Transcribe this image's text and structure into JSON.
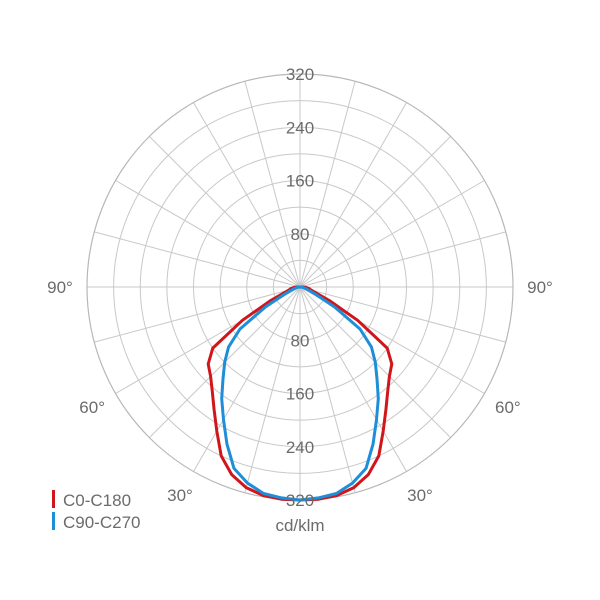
{
  "chart_data": {
    "type": "polar",
    "unit": "cd/klm",
    "radial_ticks": [
      "80",
      "160",
      "240",
      "320"
    ],
    "radial_tick_values": [
      80,
      160,
      240,
      320
    ],
    "radial_max": 320,
    "angle_labels": [
      "90°",
      "60°",
      "30°",
      "90°",
      "60°",
      "30°"
    ],
    "angle_label_values": [
      90,
      60,
      30,
      -90,
      -60,
      -30
    ],
    "spoke_step_deg": 15,
    "legend_position": "bottom-left",
    "series": [
      {
        "name": "C0-C180",
        "color": "#d0161b",
        "angles": [
          -90,
          -85,
          -80,
          -75,
          -70,
          -65,
          -60,
          -55,
          -50,
          -45,
          -40,
          -35,
          -30,
          -25,
          -20,
          -15,
          -10,
          -5,
          0,
          5,
          10,
          15,
          20,
          25,
          30,
          35,
          40,
          45,
          50,
          55,
          60,
          65,
          70,
          75,
          80,
          85,
          90
        ],
        "values": [
          5,
          10,
          14,
          17,
          25,
          50,
          100,
          160,
          180,
          190,
          205,
          225,
          250,
          280,
          300,
          312,
          318,
          320,
          320,
          320,
          318,
          312,
          300,
          280,
          250,
          225,
          205,
          190,
          180,
          160,
          100,
          50,
          25,
          17,
          14,
          10,
          5
        ]
      },
      {
        "name": "C90-C270",
        "color": "#1e8ed8",
        "angles": [
          -90,
          -85,
          -80,
          -75,
          -70,
          -65,
          -60,
          -55,
          -50,
          -45,
          -40,
          -35,
          -30,
          -25,
          -20,
          -15,
          -10,
          -5,
          0,
          5,
          10,
          15,
          20,
          25,
          30,
          35,
          40,
          45,
          50,
          55,
          60,
          65,
          70,
          75,
          80,
          85,
          90
        ],
        "values": [
          0,
          3,
          5,
          8,
          14,
          25,
          60,
          110,
          140,
          160,
          180,
          205,
          230,
          260,
          290,
          305,
          315,
          318,
          320,
          318,
          315,
          305,
          290,
          260,
          230,
          205,
          180,
          160,
          140,
          110,
          60,
          25,
          14,
          8,
          5,
          3,
          0
        ]
      }
    ]
  }
}
